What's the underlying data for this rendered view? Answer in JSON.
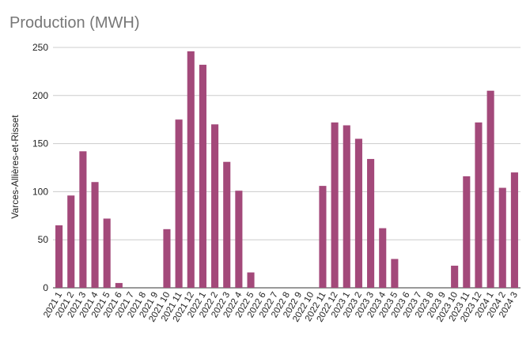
{
  "chart_data": {
    "type": "bar",
    "title": "Production (MWH)",
    "xlabel": "",
    "ylabel": "Varces-Allières-et-Risset",
    "ylim": [
      0,
      250
    ],
    "yticks": [
      0,
      50,
      100,
      150,
      200,
      250
    ],
    "grid": true,
    "bar_color": "#a3497a",
    "categories": [
      "2021 1",
      "2021 2",
      "2021 3",
      "2021 4",
      "2021 5",
      "2021 6",
      "2021 7",
      "2021 8",
      "2021 9",
      "2021 10",
      "2021 11",
      "2021 12",
      "2022 1",
      "2022 2",
      "2022 3",
      "2022 4",
      "2022 5",
      "2022 6",
      "2022 7",
      "2022 8",
      "2022 9",
      "2022 10",
      "2022 11",
      "2022 12",
      "2023 1",
      "2023 2",
      "2023 3",
      "2023 4",
      "2023 5",
      "2023 6",
      "2023 7",
      "2023 8",
      "2023 9",
      "2023 10",
      "2023 11",
      "2023 12",
      "2024 1",
      "2024 2",
      "2024 3"
    ],
    "values": [
      65,
      96,
      142,
      110,
      72,
      5,
      0,
      0,
      0,
      61,
      175,
      246,
      232,
      170,
      131,
      101,
      16,
      0,
      0,
      0,
      0,
      0,
      106,
      172,
      169,
      155,
      134,
      62,
      30,
      0,
      0,
      0,
      0,
      23,
      116,
      172,
      205,
      104,
      120
    ]
  }
}
